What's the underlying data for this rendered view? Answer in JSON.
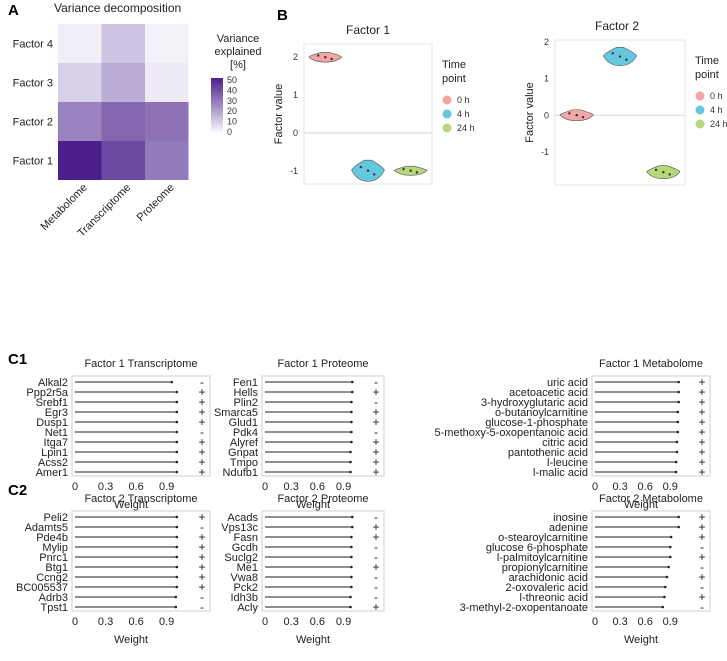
{
  "panels": {
    "A": "A",
    "B": "B",
    "C1": "C1",
    "C2": "C2"
  },
  "heatmap": {
    "title": "Variance decomposition",
    "rows": [
      "Factor 4",
      "Factor 3",
      "Factor 2",
      "Factor 1"
    ],
    "columns": [
      "Metabolome",
      "Transcriptome",
      "Proteome"
    ],
    "values": [
      [
        2,
        12,
        1
      ],
      [
        9,
        18,
        3
      ],
      [
        28,
        35,
        32
      ],
      [
        52,
        42,
        30
      ]
    ],
    "legend_title_lines": [
      "Variance",
      "explained",
      "[%]"
    ],
    "legend_ticks": [
      "50",
      "40",
      "30",
      "20",
      "10",
      "0"
    ],
    "scale_max": 52,
    "colors": {
      "low": "#f7f6fb",
      "high": "#4a1f8c"
    }
  },
  "chart_data": [
    {
      "type": "violin",
      "title": "Factor 1",
      "ylabel": "Factor value",
      "yticks": [
        "2",
        "1",
        "0",
        "-1"
      ],
      "ylim": [
        -1.35,
        2.35
      ],
      "groups": [
        "0 h",
        "4 h",
        "24 h"
      ],
      "medians": [
        2.0,
        -1.0,
        -1.0
      ],
      "spread": [
        0.13,
        0.28,
        0.12
      ],
      "colors": [
        "#f4a5a5",
        "#65c7dd",
        "#b8d67a"
      ],
      "legend_title_lines": [
        "Time",
        "point"
      ]
    },
    {
      "type": "violin",
      "title": "Factor 2",
      "ylabel": "Factor value",
      "yticks": [
        "2",
        "1",
        "0",
        "-1"
      ],
      "ylim": [
        -1.9,
        2.05
      ],
      "groups": [
        "0 h",
        "4 h",
        "24 h"
      ],
      "medians": [
        0.0,
        1.6,
        -1.55
      ],
      "spread": [
        0.15,
        0.25,
        0.18
      ],
      "colors": [
        "#f4a5a5",
        "#65c7dd",
        "#b8d67a"
      ],
      "legend_title_lines": [
        "Time",
        "point"
      ]
    },
    {
      "type": "lollipop",
      "title": "Factor 1 Transcriptome",
      "xlabel": "Weight",
      "xticks": [
        "0",
        "0.3",
        "0.6",
        "0.9"
      ],
      "features": [
        "Alkal2",
        "Ppp2r5a",
        "Srebf1",
        "Egr3",
        "Dusp1",
        "Net1",
        "Itga7",
        "Lpin1",
        "Acss2",
        "Amer1"
      ],
      "weights": [
        0.95,
        1.0,
        1.0,
        1.0,
        1.0,
        1.0,
        1.0,
        1.0,
        1.0,
        1.0
      ],
      "signs": [
        "-",
        "+",
        "+",
        "+",
        "+",
        "-",
        "+",
        "+",
        "+",
        "+"
      ]
    },
    {
      "type": "lollipop",
      "title": "Factor 1 Proteome",
      "xlabel": "Weight",
      "xticks": [
        "0",
        "0.3",
        "0.6",
        "0.9"
      ],
      "features": [
        "Fen1",
        "Hells",
        "Plin2",
        "Smarca5",
        "Glud1",
        "Pdk4",
        "Alyref",
        "Gnpat",
        "Tmpo",
        "Ndufb1"
      ],
      "weights": [
        1.0,
        1.0,
        0.99,
        0.99,
        0.99,
        0.99,
        0.99,
        0.98,
        0.98,
        0.98
      ],
      "signs": [
        "-",
        "+",
        "-",
        "+",
        "+",
        "-",
        "+",
        "+",
        "+",
        "+"
      ]
    },
    {
      "type": "lollipop",
      "title": "Factor 1 Metabolome",
      "xlabel": "Weight",
      "xticks": [
        "0",
        "0.3",
        "0.6",
        "0.9"
      ],
      "features": [
        "uric acid",
        "acetoacetic acid",
        "3-hydroxyglutaric acid",
        "o-butanoylcarnitine",
        "glucose-1-phosphate",
        "5-methoxy-5-oxopentanoic acid",
        "citric acid",
        "pantothenic acid",
        "l-leucine",
        "l-malic acid"
      ],
      "weights": [
        1.0,
        1.0,
        1.0,
        0.99,
        0.99,
        0.99,
        0.98,
        0.98,
        0.97,
        0.97
      ],
      "signs": [
        "+",
        "+",
        "+",
        "+",
        "+",
        "+",
        "+",
        "+",
        "+",
        "+"
      ]
    },
    {
      "type": "lollipop",
      "title": "Factor 2 Transcriptome",
      "xlabel": "Weight",
      "xticks": [
        "0",
        "0.3",
        "0.6",
        "0.9"
      ],
      "features": [
        "Peli2",
        "Adamts5",
        "Pde4b",
        "Mylip",
        "Pnrc1",
        "Btg1",
        "Ccng2",
        "BC005537",
        "Adrb3",
        "Tpst1"
      ],
      "weights": [
        1.0,
        1.0,
        1.0,
        1.0,
        1.0,
        1.0,
        1.0,
        1.0,
        0.99,
        0.99
      ],
      "signs": [
        "+",
        "-",
        "+",
        "+",
        "+",
        "+",
        "+",
        "+",
        "-",
        "-"
      ]
    },
    {
      "type": "lollipop",
      "title": "Factor 2 Proteome",
      "xlabel": "Weight",
      "xticks": [
        "0",
        "0.3",
        "0.6",
        "0.9"
      ],
      "features": [
        "Acads",
        "Vps13c",
        "Fasn",
        "Gcdh",
        "Suclg2",
        "Me1",
        "Vwa8",
        "Pck2",
        "Idh3b",
        "Acly"
      ],
      "weights": [
        1.0,
        1.0,
        0.99,
        0.99,
        0.99,
        0.99,
        0.99,
        0.99,
        0.98,
        0.98
      ],
      "signs": [
        "-",
        "+",
        "+",
        "-",
        "-",
        "+",
        "-",
        "-",
        "-",
        "+"
      ]
    },
    {
      "type": "lollipop",
      "title": "Factor 2 Metabolome",
      "xlabel": "Weight",
      "xticks": [
        "0",
        "0.3",
        "0.6",
        "0.9"
      ],
      "features": [
        "inosine",
        "adenine",
        "o-stearoylcarnitine",
        "glucose 6-phosphate",
        "l-palmitoylcarnitine",
        "propionylcarnitine",
        "arachidonic acid",
        "2-oxovaleric acid",
        "l-threonic acid",
        "3-methyl-2-oxopentanoate"
      ],
      "weights": [
        1.0,
        1.0,
        0.91,
        0.9,
        0.9,
        0.88,
        0.86,
        0.84,
        0.83,
        0.81
      ],
      "signs": [
        "+",
        "+",
        "+",
        "-",
        "+",
        "-",
        "+",
        "-",
        "+",
        "-"
      ]
    }
  ]
}
